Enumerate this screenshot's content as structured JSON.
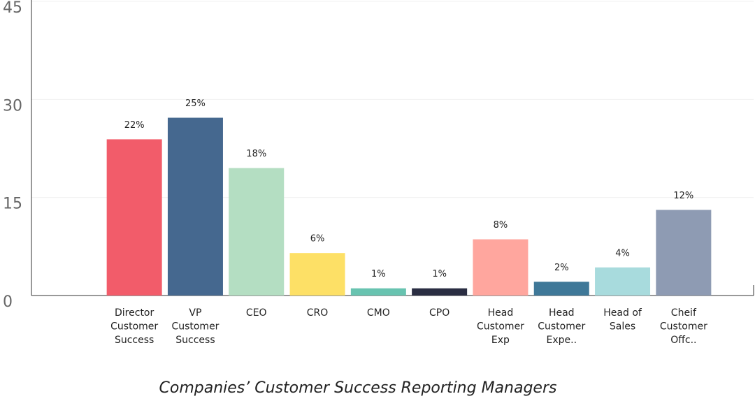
{
  "chart_data": {
    "type": "bar",
    "title": "Companies’ Customer Success Reporting Managers",
    "categories": [
      [
        "Director",
        "Customer",
        "Success"
      ],
      [
        "VP",
        "Customer",
        "Success"
      ],
      [
        "CEO"
      ],
      [
        "CRO"
      ],
      [
        "CMO"
      ],
      [
        "CPO"
      ],
      [
        "Head",
        "Customer",
        "Exp"
      ],
      [
        "Head",
        "Customer",
        "Expe.."
      ],
      [
        "Head of",
        "Sales"
      ],
      [
        "Cheif",
        "Customer",
        "Offc.."
      ]
    ],
    "values": [
      23.9,
      27.2,
      19.5,
      6.5,
      1.1,
      1.1,
      8.6,
      2.1,
      4.3,
      13.1
    ],
    "value_labels": [
      "22%",
      "25%",
      "18%",
      "6%",
      "1%",
      "1%",
      "8%",
      "2%",
      "4%",
      "12%"
    ],
    "colors": [
      "#f25c6a",
      "#45688f",
      "#b4dec2",
      "#fde066",
      "#68c3b0",
      "#2a2d42",
      "#ffa69e",
      "#3f7898",
      "#a8dbdd",
      "#8e9bb3"
    ],
    "ylim": [
      0,
      45
    ],
    "yticks": [
      0,
      15,
      30,
      45
    ],
    "grid": true
  }
}
